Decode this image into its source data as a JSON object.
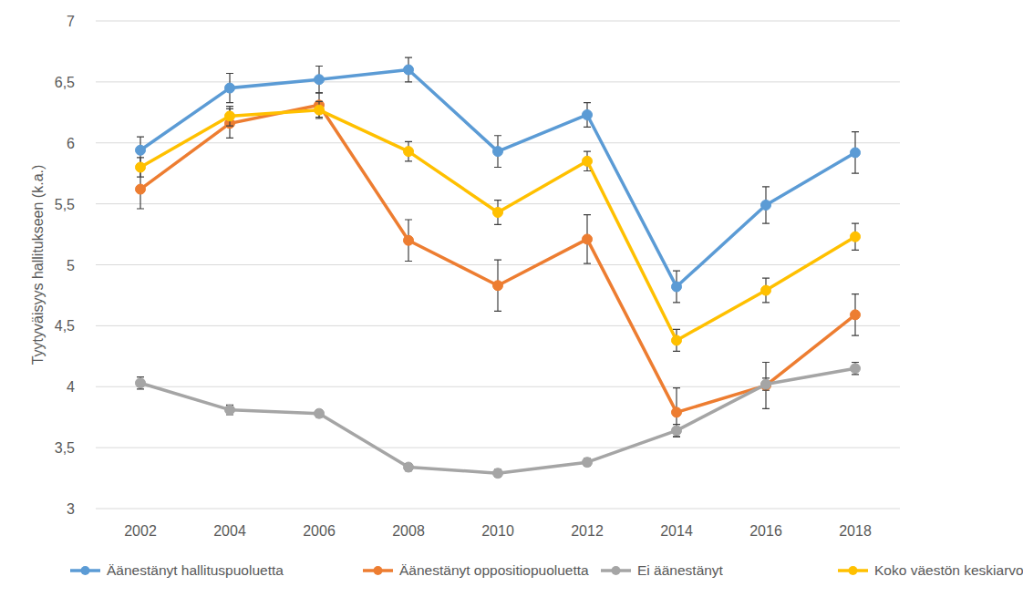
{
  "chart_data": {
    "type": "line",
    "y_label": "Tyytyväisyys hallitukseen (k.a.)",
    "categories": [
      "2002",
      "2004",
      "2006",
      "2008",
      "2010",
      "2012",
      "2014",
      "2016",
      "2018"
    ],
    "series": [
      {
        "name": "Äänestänyt hallituspuoluetta",
        "color": "#5b9bd5",
        "marker": "circle",
        "values": [
          5.94,
          6.45,
          6.52,
          6.6,
          5.93,
          6.23,
          4.82,
          5.49,
          5.92
        ],
        "errors": [
          0.11,
          0.12,
          0.11,
          0.1,
          0.13,
          0.1,
          0.13,
          0.15,
          0.17
        ]
      },
      {
        "name": "Äänestänyt oppositiopuoluetta",
        "color": "#ed7d31",
        "marker": "circle",
        "values": [
          5.62,
          6.16,
          6.31,
          5.2,
          4.83,
          5.21,
          3.79,
          4.01,
          4.59
        ],
        "errors": [
          0.16,
          0.12,
          0.1,
          0.17,
          0.21,
          0.2,
          0.2,
          0.19,
          0.17
        ]
      },
      {
        "name": "Ei äänestänyt",
        "color": "#a5a5a5",
        "marker": "circle",
        "values": [
          4.03,
          3.81,
          3.78,
          3.34,
          3.29,
          3.38,
          3.64,
          4.02,
          4.15
        ],
        "errors": [
          0.05,
          0.04,
          0.03,
          0.03,
          0.03,
          0.03,
          0.05,
          0.05,
          0.05
        ]
      },
      {
        "name": "Koko väestön keskiarvo",
        "color": "#ffc000",
        "marker": "circle",
        "values": [
          5.8,
          6.22,
          6.27,
          5.93,
          5.43,
          5.85,
          4.38,
          4.79,
          5.23
        ],
        "errors": [
          0.08,
          0.08,
          0.07,
          0.08,
          0.1,
          0.08,
          0.09,
          0.1,
          0.11
        ]
      }
    ],
    "ylim": [
      3,
      7
    ],
    "yticks": [
      3,
      {
        "value": 3.5,
        "label": "3,5"
      },
      4,
      {
        "value": 4.5,
        "label": "4,5"
      },
      5,
      {
        "value": 5.5,
        "label": "5,5"
      },
      6,
      {
        "value": 6.5,
        "label": "6,5"
      },
      7
    ],
    "grid": true,
    "legend": "bottom"
  }
}
